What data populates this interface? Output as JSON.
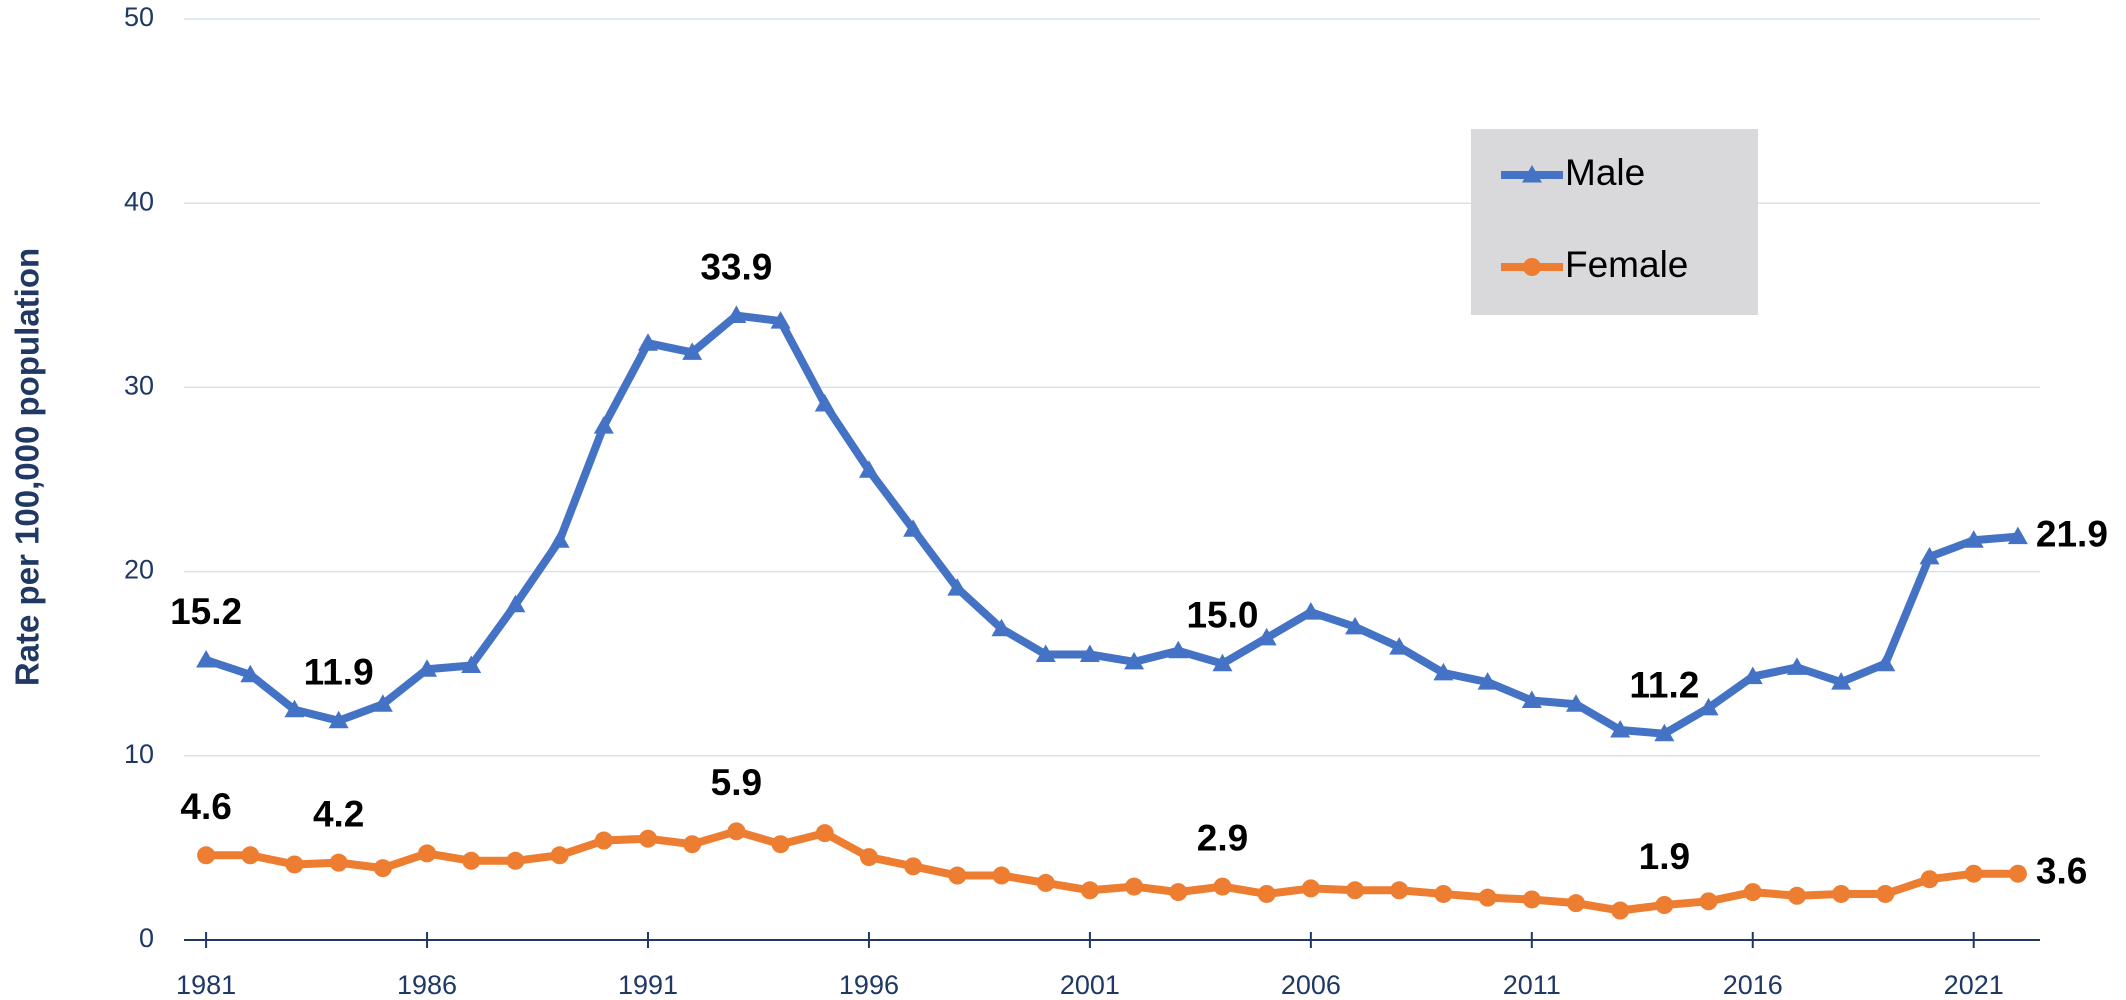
{
  "chart_data": {
    "type": "line",
    "y_label": "Rate per 100,000 population",
    "x": [
      1981,
      1982,
      1983,
      1984,
      1985,
      1986,
      1987,
      1988,
      1989,
      1990,
      1991,
      1992,
      1993,
      1994,
      1995,
      1996,
      1997,
      1998,
      1999,
      2000,
      2001,
      2002,
      2003,
      2004,
      2005,
      2006,
      2007,
      2008,
      2009,
      2010,
      2011,
      2012,
      2013,
      2014,
      2015,
      2016,
      2017,
      2018,
      2019,
      2020,
      2021,
      2022
    ],
    "series": [
      {
        "name": "Male",
        "color": "#4472c4",
        "marker": "triangle",
        "values": [
          15.2,
          14.4,
          12.5,
          11.9,
          12.8,
          14.7,
          14.9,
          18.2,
          21.7,
          27.9,
          32.4,
          31.9,
          33.9,
          33.6,
          29.1,
          25.5,
          22.3,
          19.1,
          16.9,
          15.5,
          15.5,
          15.1,
          15.7,
          15.0,
          16.4,
          17.8,
          17.0,
          15.9,
          14.5,
          14.0,
          13.0,
          12.8,
          11.4,
          11.2,
          12.6,
          14.3,
          14.8,
          14.0,
          15.0,
          20.8,
          21.7,
          21.9
        ],
        "value_labels": [
          "15.2",
          null,
          null,
          "11.9",
          null,
          null,
          null,
          null,
          null,
          null,
          null,
          null,
          "33.9",
          null,
          null,
          null,
          null,
          null,
          null,
          null,
          null,
          null,
          null,
          "15.0",
          null,
          null,
          null,
          null,
          null,
          null,
          null,
          null,
          null,
          "11.2",
          null,
          null,
          null,
          null,
          null,
          null,
          null,
          "21.9"
        ]
      },
      {
        "name": "Female",
        "color": "#ed7d31",
        "marker": "circle",
        "values": [
          4.6,
          4.6,
          4.1,
          4.2,
          3.9,
          4.7,
          4.3,
          4.3,
          4.6,
          5.4,
          5.5,
          5.2,
          5.9,
          5.2,
          5.8,
          4.5,
          4.0,
          3.5,
          3.5,
          3.1,
          2.7,
          2.9,
          2.6,
          2.9,
          2.5,
          2.8,
          2.7,
          2.7,
          2.5,
          2.3,
          2.2,
          2.0,
          1.6,
          1.9,
          2.1,
          2.6,
          2.4,
          2.5,
          2.5,
          3.3,
          3.6,
          3.6
        ],
        "value_labels": [
          "4.6",
          null,
          null,
          "4.2",
          null,
          null,
          null,
          null,
          null,
          null,
          null,
          null,
          "5.9",
          null,
          null,
          null,
          null,
          null,
          null,
          null,
          null,
          null,
          null,
          "2.9",
          null,
          null,
          null,
          null,
          null,
          null,
          null,
          null,
          null,
          "1.9",
          null,
          null,
          null,
          null,
          null,
          null,
          null,
          "3.6"
        ]
      }
    ],
    "xlim": [
      1980.5,
      2022.5
    ],
    "xticks": [
      1981,
      1986,
      1991,
      1996,
      2001,
      2006,
      2011,
      2016,
      2021
    ],
    "ylim": [
      0,
      50
    ],
    "yticks": [
      0,
      10,
      20,
      30,
      40,
      50
    ],
    "grid": true,
    "legend": "upper right"
  }
}
